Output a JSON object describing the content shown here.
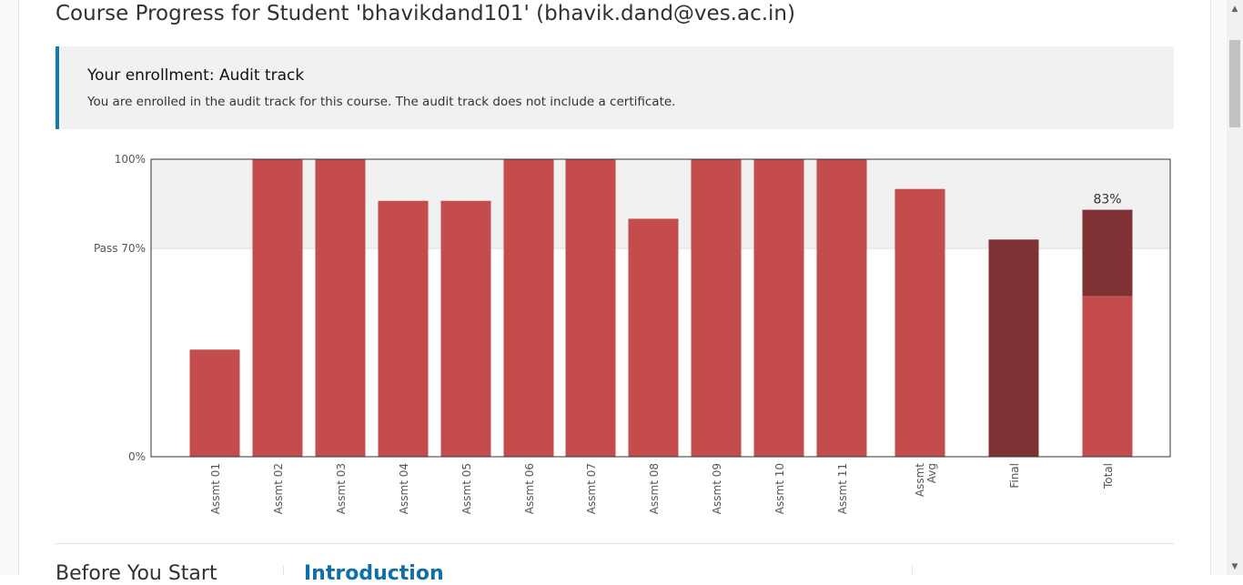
{
  "page": {
    "title": "Course Progress for Student 'bhavikdand101' (bhavik.dand@ves.ac.in)"
  },
  "enrollment": {
    "title": "Your enrollment: Audit track",
    "message": "You are enrolled in the audit track for this course. The audit track does not include a certificate."
  },
  "colors": {
    "bar": "#c44c4d",
    "bar_dark": "#7f3133",
    "pass_zone": "#f1f1f1",
    "accent": "#0f7fb2"
  },
  "chart_data": {
    "type": "bar",
    "title": "",
    "ylim": [
      0,
      100
    ],
    "y_ticks": [
      {
        "value": 100,
        "label": "100%"
      },
      {
        "value": 70,
        "label": "Pass 70%"
      },
      {
        "value": 0,
        "label": "0%"
      }
    ],
    "pass_threshold": 70,
    "categories": [
      "Assmt 01",
      "Assmt 02",
      "Assmt 03",
      "Assmt 04",
      "Assmt 05",
      "Assmt 06",
      "Assmt 07",
      "Assmt 08",
      "Assmt 09",
      "Assmt 10",
      "Assmt 11",
      "Assmt Avg",
      "Final",
      "Total"
    ],
    "values": [
      36,
      100,
      100,
      86,
      86,
      100,
      100,
      80,
      100,
      100,
      100,
      90,
      73,
      83
    ],
    "total_breakdown": {
      "assignments": 54,
      "final": 29
    },
    "data_labels": [
      {
        "category": "Total",
        "label": "83%"
      }
    ],
    "grid": false,
    "legend": "none"
  },
  "sections": {
    "left_heading": "Before You Start",
    "middle_heading": "Introduction"
  }
}
